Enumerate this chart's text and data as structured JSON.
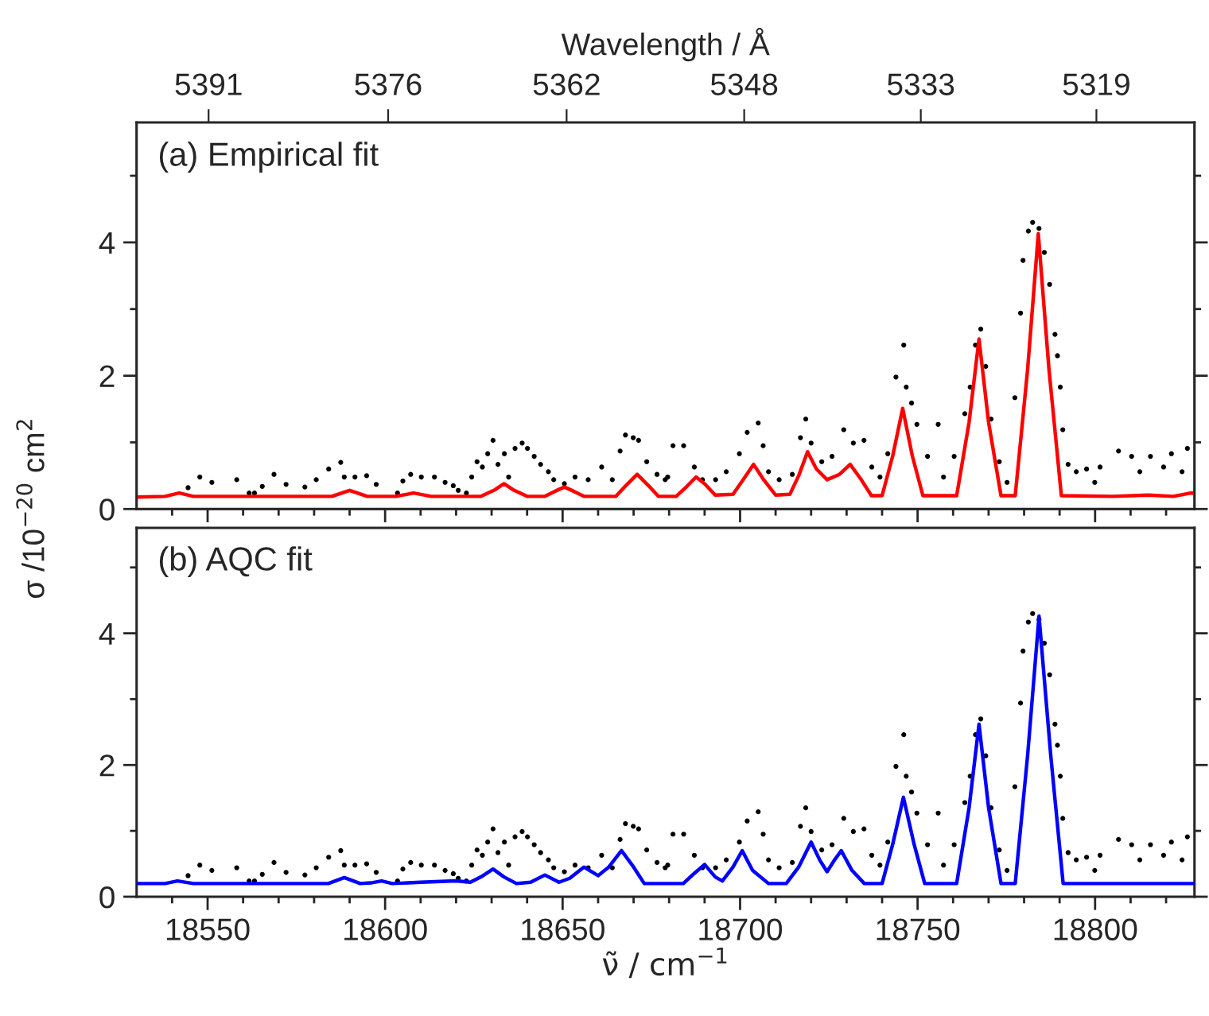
{
  "chart_data": [
    {
      "type": "line",
      "ylabel": "σ /10$^{−20}$ cm$^{2}$",
      "x2label": "Wavelength / Å",
      "annotations": [
        "(a) Empirical fit"
      ],
      "tick_labels": "y",
      "xlim": [
        18530,
        18828
      ],
      "ylim": [
        0,
        5.8
      ],
      "xticks": [
        {
          "value": 18540,
          "label": null
        },
        18550,
        {
          "value": 18560,
          "label": null
        },
        {
          "value": 18570,
          "label": null
        },
        {
          "value": 18580,
          "label": null
        },
        {
          "value": 18590,
          "label": null
        },
        18600,
        {
          "value": 18610,
          "label": null
        },
        {
          "value": 18620,
          "label": null
        },
        {
          "value": 18630,
          "label": null
        },
        {
          "value": 18640,
          "label": null
        },
        18650,
        {
          "value": 18660,
          "label": null
        },
        {
          "value": 18670,
          "label": null
        },
        {
          "value": 18680,
          "label": null
        },
        {
          "value": 18690,
          "label": null
        },
        18700,
        {
          "value": 18710,
          "label": null
        },
        {
          "value": 18720,
          "label": null
        },
        {
          "value": 18730,
          "label": null
        },
        {
          "value": 18740,
          "label": null
        },
        18750,
        {
          "value": 18760,
          "label": null
        },
        {
          "value": 18770,
          "label": null
        },
        {
          "value": 18780,
          "label": null
        },
        {
          "value": 18790,
          "label": null
        },
        18800,
        {
          "value": 18810,
          "label": null
        },
        {
          "value": 18820,
          "label": null
        }
      ],
      "yticks": [
        0,
        {
          "value": 1,
          "label": null
        },
        2,
        {
          "value": 3,
          "label": null
        },
        4,
        {
          "value": 5,
          "label": null
        }
      ],
      "x2lim": [
        5396.65,
        5311.23
      ],
      "x2ticks": [
        {
          "value": 5390.84,
          "label": "5391"
        },
        {
          "value": 5376.34,
          "label": "5376"
        },
        {
          "value": 5361.93,
          "label": "5362"
        },
        {
          "value": 5347.59,
          "label": "5348"
        },
        {
          "value": 5333.33,
          "label": "5333"
        },
        {
          "value": 5319.15,
          "label": "5319"
        }
      ],
      "series": [
        {
          "type": "scatter",
          "marker": "circle",
          "color": "#000000",
          "x": [
            18544.5,
            18547.8,
            18551.2,
            18558.2,
            18561.7,
            18563.2,
            18565.4,
            18568.7,
            18572.1,
            18577.4,
            18580.6,
            18584.1,
            18587.5,
            18588.5,
            18591.5,
            18594.8,
            18597.5,
            18603.5,
            18605,
            18607.2,
            18610.2,
            18613.9,
            18616.9,
            18619.2,
            18620.6,
            18622.9,
            18624.4,
            18625.9,
            18627.4,
            18628.9,
            18630.4,
            18631.8,
            18633.6,
            18634.8,
            18636.6,
            18638.6,
            18640.1,
            18642,
            18643.8,
            18646,
            18647.5,
            18650.5,
            18653.5,
            18657.2,
            18661,
            18664,
            18666.2,
            18667.7,
            18669.9,
            18671.4,
            18673.7,
            18676.6,
            18678.9,
            18679.6,
            18681.1,
            18684.1,
            18687.1,
            18689.4,
            18693.1,
            18696.1,
            18699.8,
            18702,
            18705.1,
            18706.5,
            18708,
            18711,
            18714.7,
            18717,
            18718.5,
            18720,
            18723,
            18725.9,
            18729.2,
            18731.9,
            18734.9,
            18737.1,
            18739.4,
            18741.6,
            18743.9,
            18746.1,
            18746.8,
            18748.3,
            18749.8,
            18752.8,
            18755.8,
            18757.3,
            18760.3,
            18763.3,
            18764.8,
            18766.3,
            18767.8,
            18769.2,
            18770.7,
            18773,
            18775.2,
            18777.4,
            18779,
            18779.7,
            18781.2,
            18782.4,
            18784.2,
            18785.7,
            18787.2,
            18788.7,
            18789.4,
            18790.2,
            18790.9,
            18792.4,
            18794.7,
            18797.6,
            18799.9,
            18801.4,
            18806.6,
            18810.3,
            18812.6,
            18815.6,
            18819.3,
            18821.5,
            18824.5,
            18826
          ],
          "values": [
            0.32,
            0.48,
            0.4,
            0.44,
            0.24,
            0.24,
            0.34,
            0.52,
            0.37,
            0.33,
            0.44,
            0.6,
            0.7,
            0.48,
            0.48,
            0.5,
            0.37,
            0.24,
            0.42,
            0.52,
            0.48,
            0.48,
            0.4,
            0.35,
            0.28,
            0.24,
            0.48,
            0.71,
            0.63,
            0.83,
            1.03,
            0.67,
            0.83,
            0.48,
            0.91,
            0.99,
            0.91,
            0.79,
            0.67,
            0.56,
            0.44,
            0.38,
            0.48,
            0.44,
            0.63,
            0.44,
            0.87,
            1.11,
            1.07,
            1.03,
            0.71,
            0.52,
            0.44,
            0.48,
            0.95,
            0.95,
            0.63,
            0.44,
            0.44,
            0.56,
            0.83,
            1.15,
            1.29,
            0.95,
            0.56,
            0.44,
            0.52,
            1.07,
            1.35,
            0.99,
            0.71,
            0.79,
            1.19,
            0.99,
            1.03,
            0.63,
            0.48,
            0.83,
            1.98,
            2.46,
            1.83,
            1.59,
            1.27,
            0.79,
            1.27,
            0.48,
            0.79,
            1.43,
            1.83,
            2.46,
            2.7,
            2.14,
            1.35,
            0.71,
            0.4,
            1.67,
            2.94,
            3.73,
            4.17,
            4.3,
            4.21,
            3.85,
            3.37,
            2.62,
            2.3,
            1.83,
            1.19,
            0.67,
            0.56,
            0.6,
            0.4,
            0.63,
            0.87,
            0.79,
            0.56,
            0.79,
            0.63,
            0.83,
            0.56,
            0.91
          ]
        },
        {
          "marker": "none",
          "line_style": "solid",
          "color": "#ff0000",
          "x": [
            18530,
            18538,
            18542,
            18546,
            18585,
            18590,
            18595,
            18603,
            18608,
            18613,
            18627,
            18631,
            18633.5,
            18636,
            18640,
            18645,
            18648,
            18650.5,
            18653,
            18656,
            18665,
            18668,
            18671,
            18674,
            18677,
            18682,
            18685,
            18687.6,
            18690,
            18693,
            18698,
            18701,
            18703.8,
            18706.5,
            18710,
            18714,
            18716.5,
            18719,
            18721.5,
            18724.5,
            18728,
            18731,
            18734,
            18737,
            18740,
            18743,
            18745.8,
            18748.5,
            18751.5,
            18761,
            18764.5,
            18767.3,
            18770,
            18773.5,
            18777.5,
            18781,
            18784,
            18787,
            18790.5,
            18805,
            18815,
            18822,
            18827,
            18828
          ],
          "values": [
            0.18,
            0.19,
            0.24,
            0.19,
            0.19,
            0.28,
            0.19,
            0.19,
            0.24,
            0.19,
            0.19,
            0.29,
            0.38,
            0.29,
            0.19,
            0.19,
            0.27,
            0.33,
            0.27,
            0.19,
            0.19,
            0.36,
            0.52,
            0.36,
            0.19,
            0.19,
            0.34,
            0.48,
            0.38,
            0.21,
            0.22,
            0.45,
            0.67,
            0.45,
            0.21,
            0.22,
            0.5,
            0.86,
            0.6,
            0.44,
            0.52,
            0.67,
            0.45,
            0.2,
            0.2,
            0.8,
            1.51,
            0.8,
            0.2,
            0.2,
            1.3,
            2.55,
            1.3,
            0.2,
            0.2,
            2.1,
            4.13,
            2.1,
            0.2,
            0.19,
            0.21,
            0.19,
            0.24,
            0.24
          ]
        }
      ]
    },
    {
      "type": "line",
      "xlabel": "ν̃ / cm$^{−1}$",
      "annotations": [
        "(b) AQC fit"
      ],
      "xlim": [
        18530,
        18828
      ],
      "ylim": [
        0,
        5.6
      ],
      "xticks": [
        {
          "value": 18540,
          "label": null
        },
        18550,
        {
          "value": 18560,
          "label": null
        },
        {
          "value": 18570,
          "label": null
        },
        {
          "value": 18580,
          "label": null
        },
        {
          "value": 18590,
          "label": null
        },
        18600,
        {
          "value": 18610,
          "label": null
        },
        {
          "value": 18620,
          "label": null
        },
        {
          "value": 18630,
          "label": null
        },
        {
          "value": 18640,
          "label": null
        },
        18650,
        {
          "value": 18660,
          "label": null
        },
        {
          "value": 18670,
          "label": null
        },
        {
          "value": 18680,
          "label": null
        },
        {
          "value": 18690,
          "label": null
        },
        18700,
        {
          "value": 18710,
          "label": null
        },
        {
          "value": 18720,
          "label": null
        },
        {
          "value": 18730,
          "label": null
        },
        {
          "value": 18740,
          "label": null
        },
        18750,
        {
          "value": 18760,
          "label": null
        },
        {
          "value": 18770,
          "label": null
        },
        {
          "value": 18780,
          "label": null
        },
        {
          "value": 18790,
          "label": null
        },
        18800,
        {
          "value": 18810,
          "label": null
        },
        {
          "value": 18820,
          "label": null
        }
      ],
      "yticks": [
        0,
        {
          "value": 1,
          "label": null
        },
        2,
        {
          "value": 3,
          "label": null
        },
        4,
        {
          "value": 5,
          "label": null
        }
      ],
      "series": [
        {
          "type": "scatter",
          "marker": "circle",
          "color": "#000000",
          "x": [
            18544.5,
            18547.8,
            18551.2,
            18558.2,
            18561.7,
            18563.2,
            18565.4,
            18568.7,
            18572.1,
            18577.4,
            18580.6,
            18584.1,
            18587.5,
            18588.5,
            18591.5,
            18594.8,
            18597.5,
            18603.5,
            18605,
            18607.2,
            18610.2,
            18613.9,
            18616.9,
            18619.2,
            18620.6,
            18622.9,
            18624.4,
            18625.9,
            18627.4,
            18628.9,
            18630.4,
            18631.8,
            18633.6,
            18634.8,
            18636.6,
            18638.6,
            18640.1,
            18642,
            18643.8,
            18646,
            18647.5,
            18650.5,
            18653.5,
            18657.2,
            18661,
            18664,
            18666.2,
            18667.7,
            18669.9,
            18671.4,
            18673.7,
            18676.6,
            18678.9,
            18679.6,
            18681.1,
            18684.1,
            18687.1,
            18689.4,
            18693.1,
            18696.1,
            18699.8,
            18702,
            18705.1,
            18706.5,
            18708,
            18711,
            18714.7,
            18717,
            18718.5,
            18720,
            18723,
            18725.9,
            18729.2,
            18731.9,
            18734.9,
            18737.1,
            18739.4,
            18741.6,
            18743.9,
            18746.1,
            18746.8,
            18748.3,
            18749.8,
            18752.8,
            18755.8,
            18757.3,
            18760.3,
            18763.3,
            18764.8,
            18766.3,
            18767.8,
            18769.2,
            18770.7,
            18773,
            18775.2,
            18777.4,
            18779,
            18779.7,
            18781.2,
            18782.4,
            18784.2,
            18785.7,
            18787.2,
            18788.7,
            18789.4,
            18790.2,
            18790.9,
            18792.4,
            18794.7,
            18797.6,
            18799.9,
            18801.4,
            18806.6,
            18810.3,
            18812.6,
            18815.6,
            18819.3,
            18821.5,
            18824.5,
            18826
          ],
          "values": [
            0.32,
            0.48,
            0.4,
            0.44,
            0.24,
            0.24,
            0.34,
            0.52,
            0.37,
            0.33,
            0.44,
            0.6,
            0.7,
            0.48,
            0.48,
            0.5,
            0.37,
            0.24,
            0.42,
            0.52,
            0.48,
            0.48,
            0.4,
            0.35,
            0.28,
            0.24,
            0.48,
            0.71,
            0.63,
            0.83,
            1.03,
            0.67,
            0.83,
            0.48,
            0.91,
            0.99,
            0.91,
            0.79,
            0.67,
            0.56,
            0.44,
            0.38,
            0.48,
            0.44,
            0.63,
            0.44,
            0.87,
            1.11,
            1.07,
            1.03,
            0.71,
            0.52,
            0.44,
            0.48,
            0.95,
            0.95,
            0.63,
            0.44,
            0.44,
            0.56,
            0.83,
            1.15,
            1.29,
            0.95,
            0.56,
            0.44,
            0.52,
            1.07,
            1.35,
            0.99,
            0.71,
            0.79,
            1.19,
            0.99,
            1.03,
            0.63,
            0.48,
            0.83,
            1.98,
            2.46,
            1.83,
            1.59,
            1.27,
            0.79,
            1.27,
            0.48,
            0.79,
            1.43,
            1.83,
            2.46,
            2.7,
            2.14,
            1.35,
            0.71,
            0.4,
            1.67,
            2.94,
            3.73,
            4.17,
            4.3,
            4.21,
            3.85,
            3.37,
            2.62,
            2.3,
            1.83,
            1.19,
            0.67,
            0.56,
            0.6,
            0.4,
            0.63,
            0.87,
            0.79,
            0.56,
            0.79,
            0.63,
            0.83,
            0.56,
            0.91
          ]
        },
        {
          "marker": "none",
          "line_style": "solid",
          "color": "#0000ff",
          "x": [
            18530,
            18538,
            18541.5,
            18546,
            18584,
            18588.5,
            18593,
            18596,
            18599,
            18602,
            18610,
            18620,
            18624,
            18627,
            18630.4,
            18633.5,
            18637,
            18641,
            18645,
            18649,
            18652,
            18656,
            18660,
            18663,
            18666.6,
            18670,
            18673,
            18684,
            18687,
            18690,
            18693,
            18695,
            18698,
            18700.6,
            18703.5,
            18708,
            18713,
            18716.5,
            18720,
            18722.5,
            18724.5,
            18726.5,
            18728.5,
            18731.5,
            18735,
            18740,
            18743,
            18746,
            18749,
            18752,
            18761,
            18764.5,
            18767.3,
            18770,
            18773.5,
            18777.5,
            18781,
            18784.2,
            18787.5,
            18791,
            18828
          ],
          "values": [
            0.2,
            0.2,
            0.24,
            0.2,
            0.2,
            0.29,
            0.2,
            0.21,
            0.24,
            0.2,
            0.22,
            0.24,
            0.22,
            0.3,
            0.42,
            0.3,
            0.2,
            0.22,
            0.33,
            0.22,
            0.28,
            0.45,
            0.32,
            0.45,
            0.7,
            0.45,
            0.2,
            0.2,
            0.35,
            0.49,
            0.3,
            0.24,
            0.45,
            0.7,
            0.4,
            0.2,
            0.2,
            0.45,
            0.83,
            0.55,
            0.38,
            0.55,
            0.7,
            0.4,
            0.2,
            0.2,
            0.8,
            1.51,
            0.8,
            0.2,
            0.2,
            1.35,
            2.62,
            1.35,
            0.2,
            0.2,
            2.15,
            4.26,
            2.15,
            0.2,
            0.2
          ]
        }
      ]
    }
  ]
}
